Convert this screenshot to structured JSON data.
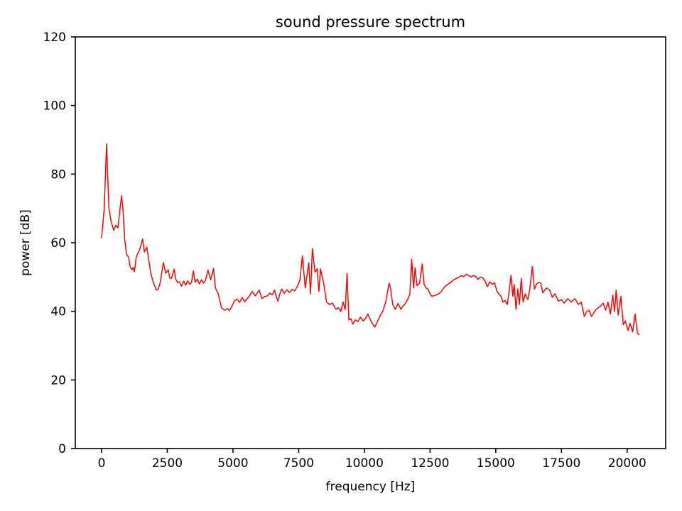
{
  "chart_data": {
    "type": "line",
    "title": "sound pressure spectrum",
    "xlabel": "frequency [Hz]",
    "ylabel": "power [dB]",
    "xlim": [
      -1000,
      21465
    ],
    "ylim": [
      0,
      120
    ],
    "xticks": [
      0,
      2500,
      5000,
      7500,
      10000,
      12500,
      15000,
      17500,
      20000
    ],
    "xtick_labels": [
      "0",
      "2500",
      "5000",
      "7500",
      "10000",
      "12500",
      "15000",
      "17500",
      "20000"
    ],
    "yticks": [
      0,
      20,
      40,
      60,
      80,
      100,
      120
    ],
    "ytick_labels": [
      "0",
      "20",
      "40",
      "60",
      "80",
      "100",
      "120"
    ],
    "grid": false,
    "legend": null,
    "line_color": "#ff0000",
    "axis_color": "#000000",
    "background_color": "#ffffff",
    "series_x_unit": "Hz",
    "series_y_unit": "dB",
    "x": [
      0,
      100,
      190,
      280,
      360,
      460,
      540,
      620,
      700,
      760,
      820,
      880,
      950,
      1030,
      1080,
      1150,
      1200,
      1250,
      1320,
      1420,
      1490,
      1560,
      1630,
      1720,
      1810,
      1880,
      1970,
      2080,
      2150,
      2220,
      2350,
      2440,
      2540,
      2590,
      2660,
      2760,
      2820,
      2890,
      2960,
      3040,
      3120,
      3200,
      3280,
      3350,
      3420,
      3490,
      3560,
      3640,
      3720,
      3800,
      3880,
      3950,
      4050,
      4150,
      4260,
      4330,
      4440,
      4560,
      4690,
      4780,
      4870,
      4960,
      5050,
      5150,
      5250,
      5350,
      5450,
      5550,
      5640,
      5720,
      5850,
      6000,
      6100,
      6200,
      6310,
      6400,
      6500,
      6580,
      6650,
      6710,
      6780,
      6850,
      6950,
      7050,
      7150,
      7250,
      7350,
      7450,
      7550,
      7640,
      7750,
      7880,
      7950,
      8020,
      8120,
      8200,
      8270,
      8330,
      8450,
      8560,
      8670,
      8790,
      8920,
      9000,
      9050,
      9100,
      9190,
      9270,
      9340,
      9410,
      9490,
      9560,
      9650,
      9750,
      9850,
      9950,
      10030,
      10130,
      10270,
      10400,
      10580,
      10700,
      10820,
      10940,
      11000,
      11080,
      11170,
      11280,
      11390,
      11460,
      11530,
      11650,
      11730,
      11800,
      11870,
      11930,
      12000,
      12100,
      12200,
      12270,
      12340,
      12420,
      12490,
      12560,
      12670,
      12780,
      12880,
      12970,
      13060,
      13150,
      13240,
      13330,
      13420,
      13510,
      13600,
      13690,
      13780,
      13870,
      13960,
      14050,
      14140,
      14230,
      14320,
      14410,
      14500,
      14590,
      14680,
      14770,
      14860,
      14950,
      15040,
      15120,
      15200,
      15270,
      15350,
      15440,
      15510,
      15580,
      15650,
      15700,
      15770,
      15840,
      15900,
      15970,
      16040,
      16120,
      16220,
      16300,
      16390,
      16470,
      16550,
      16640,
      16710,
      16790,
      16860,
      16930,
      17050,
      17150,
      17250,
      17380,
      17500,
      17600,
      17740,
      17870,
      18010,
      18140,
      18250,
      18370,
      18460,
      18550,
      18640,
      18730,
      18820,
      18950,
      19090,
      19180,
      19270,
      19360,
      19450,
      19520,
      19580,
      19660,
      19760,
      19850,
      19930,
      20030,
      20110,
      20210,
      20300,
      20390,
      20450
    ],
    "y": [
      61.4,
      70.0,
      88.8,
      70.0,
      66.3,
      63.6,
      65.1,
      64.3,
      69.8,
      73.7,
      69.0,
      61.0,
      56.5,
      55.8,
      53.2,
      52.1,
      52.8,
      51.5,
      55.9,
      57.5,
      59.0,
      61.1,
      57.3,
      58.7,
      54.2,
      50.8,
      48.4,
      46.2,
      46.4,
      48.0,
      54.2,
      51.1,
      52.1,
      49.7,
      49.6,
      52.3,
      49.4,
      48.4,
      48.6,
      47.3,
      48.8,
      47.6,
      48.9,
      47.9,
      48.4,
      51.8,
      48.5,
      49.4,
      48.0,
      49.2,
      48.2,
      49.0,
      52.0,
      49.2,
      52.5,
      46.8,
      45.1,
      41.0,
      40.3,
      40.8,
      40.2,
      41.5,
      43.0,
      43.6,
      42.6,
      44.0,
      42.8,
      43.8,
      44.6,
      45.8,
      44.5,
      46.2,
      43.7,
      44.3,
      44.5,
      45.3,
      44.8,
      46.2,
      44.2,
      43.0,
      45.0,
      46.5,
      45.2,
      46.3,
      45.5,
      46.4,
      46.0,
      47.3,
      49.2,
      56.2,
      46.8,
      54.1,
      45.1,
      58.3,
      51.4,
      52.4,
      45.8,
      52.4,
      48.2,
      42.7,
      42.0,
      42.4,
      40.6,
      41.0,
      40.7,
      39.9,
      42.7,
      40.5,
      51.0,
      37.5,
      37.8,
      36.3,
      37.5,
      37.0,
      38.3,
      37.2,
      37.8,
      39.2,
      36.8,
      35.4,
      38.5,
      40.0,
      43.0,
      48.2,
      46.5,
      42.0,
      40.6,
      42.3,
      40.6,
      41.5,
      42.0,
      43.5,
      45.0,
      55.2,
      46.8,
      52.7,
      47.5,
      48.2,
      53.8,
      47.9,
      46.8,
      46.5,
      45.2,
      44.4,
      44.6,
      44.9,
      45.4,
      46.3,
      47.2,
      47.7,
      48.2,
      48.7,
      49.3,
      49.6,
      50.0,
      50.4,
      50.1,
      50.8,
      50.5,
      50.0,
      50.4,
      50.2,
      49.3,
      50.0,
      49.8,
      48.8,
      47.2,
      48.6,
      47.9,
      48.3,
      46.0,
      45.0,
      44.4,
      42.7,
      43.2,
      42.0,
      46.0,
      50.5,
      44.4,
      47.9,
      40.6,
      46.5,
      42.0,
      49.6,
      42.7,
      45.1,
      43.4,
      46.8,
      53.1,
      46.5,
      47.9,
      48.5,
      48.2,
      45.4,
      46.2,
      46.8,
      46.2,
      44.1,
      45.1,
      43.0,
      43.4,
      42.4,
      43.7,
      42.7,
      43.7,
      42.0,
      42.7,
      38.5,
      39.9,
      40.3,
      38.5,
      39.6,
      40.6,
      41.3,
      42.4,
      40.3,
      42.7,
      39.2,
      44.7,
      39.9,
      46.2,
      38.9,
      44.4,
      36.1,
      37.2,
      34.4,
      36.5,
      34.0,
      39.2,
      33.7,
      33.2
    ]
  }
}
